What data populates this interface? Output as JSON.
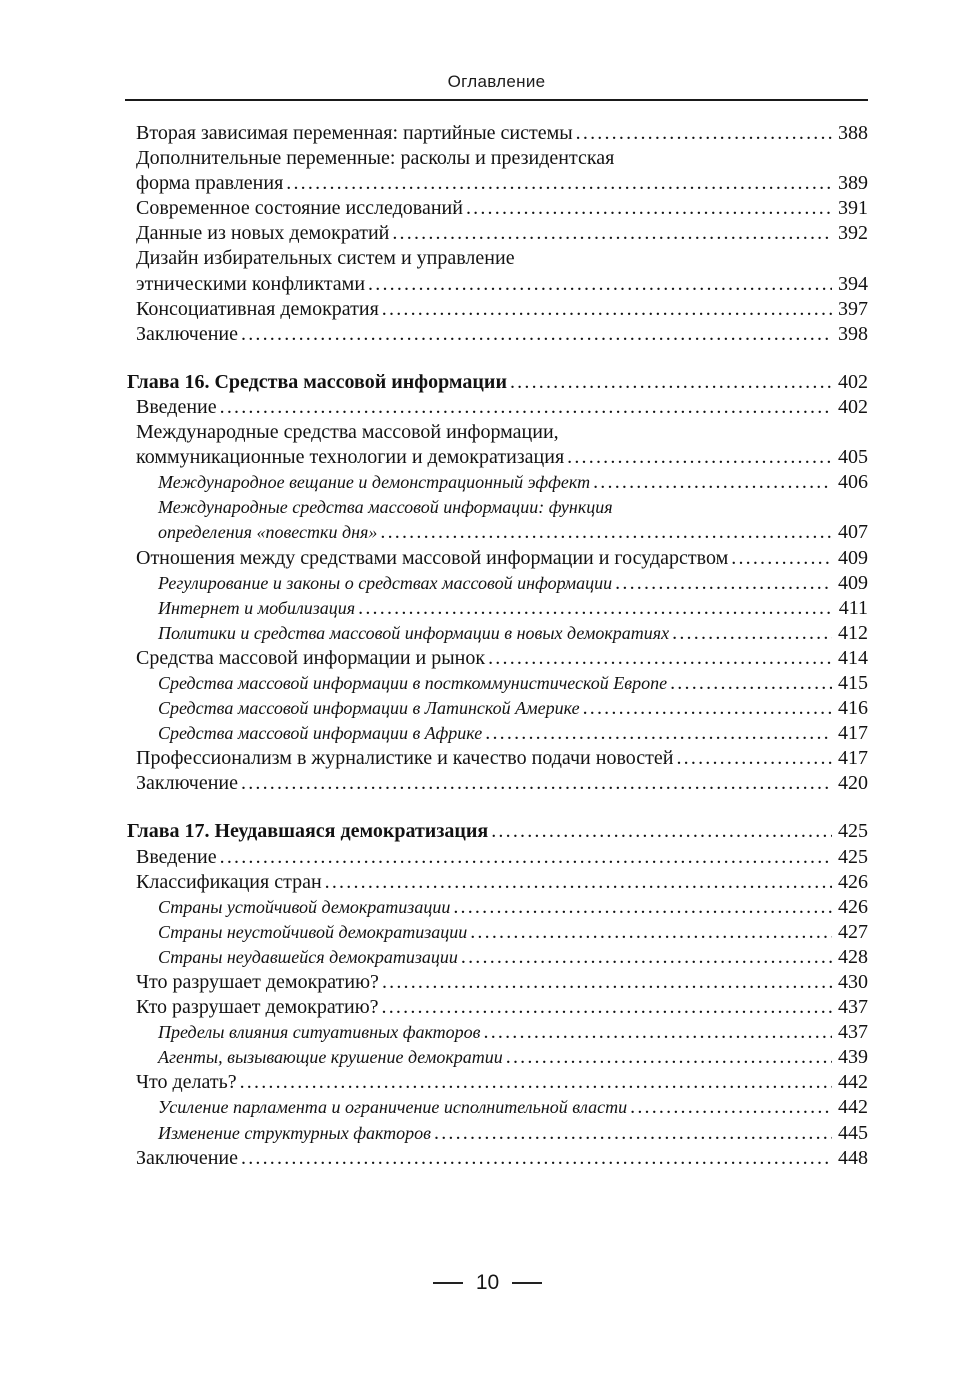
{
  "header": {
    "title": "Оглавление"
  },
  "colors": {
    "text": "#121212",
    "rule": "#1a1a1a",
    "background": "#ffffff"
  },
  "toc": {
    "lines": [
      {
        "text": "Вторая зависимая переменная: партийные системы",
        "page": "388",
        "level": 1
      },
      {
        "text": "Дополнительные переменные: расколы и президентская",
        "page": "",
        "level": 1
      },
      {
        "text": "форма правления",
        "page": "389",
        "level": 1
      },
      {
        "text": "Современное состояние исследований",
        "page": "391",
        "level": 1
      },
      {
        "text": "Данные из новых демократий",
        "page": "392",
        "level": 1
      },
      {
        "text": "Дизайн избирательных систем и управление",
        "page": "",
        "level": 1
      },
      {
        "text": "этническими конфликтами",
        "page": "394",
        "level": 1
      },
      {
        "text": "Консоциативная демократия",
        "page": "397",
        "level": 1
      },
      {
        "text": "Заключение",
        "page": "398",
        "level": 1
      },
      {
        "text": "Глава 16. Средства массовой информации",
        "page": "402",
        "level": 0,
        "bold": true,
        "section_start": true
      },
      {
        "text": "Введение",
        "page": "402",
        "level": 1
      },
      {
        "text": "Международные средства массовой информации,",
        "page": "",
        "level": 1
      },
      {
        "text": "коммуникационные технологии и демократизация",
        "page": "405",
        "level": 1
      },
      {
        "text": "Международное вещание и демонстрационный эффект",
        "page": "406",
        "level": 2,
        "italic": true
      },
      {
        "text": "Международные средства массовой информации: функция",
        "page": "",
        "level": 2,
        "italic": true
      },
      {
        "text": "определения «повестки дня»",
        "page": "407",
        "level": 2,
        "italic": true
      },
      {
        "text": "Отношения между средствами массовой информации и государством",
        "page": "409",
        "level": 1
      },
      {
        "text": "Регулирование и законы о средствах массовой информации",
        "page": "409",
        "level": 2,
        "italic": true
      },
      {
        "text": "Интернет и мобилизация",
        "page": "411",
        "level": 2,
        "italic": true
      },
      {
        "text": "Политики и средства массовой информации в новых демократиях",
        "page": "412",
        "level": 2,
        "italic": true
      },
      {
        "text": "Средства массовой информации и рынок",
        "page": "414",
        "level": 1
      },
      {
        "text": "Средства массовой информации в посткоммунистической Европе",
        "page": "415",
        "level": 2,
        "italic": true
      },
      {
        "text": "Средства массовой информации в Латинской Америке",
        "page": "416",
        "level": 2,
        "italic": true
      },
      {
        "text": "Средства массовой информации в Африке",
        "page": "417",
        "level": 2,
        "italic": true
      },
      {
        "text": "Профессионализм в журналистике и качество подачи новостей",
        "page": "417",
        "level": 1
      },
      {
        "text": "Заключение",
        "page": "420",
        "level": 1
      },
      {
        "text": "Глава 17. Неудавшаяся демократизация",
        "page": "425",
        "level": 0,
        "bold": true,
        "section_start": true
      },
      {
        "text": "Введение",
        "page": "425",
        "level": 1
      },
      {
        "text": "Классификация стран",
        "page": "426",
        "level": 1
      },
      {
        "text": "Страны устойчивой демократизации",
        "page": "426",
        "level": 2,
        "italic": true
      },
      {
        "text": "Страны неустойчивой демократизации",
        "page": "427",
        "level": 2,
        "italic": true
      },
      {
        "text": "Страны неудавшейся демократизации",
        "page": "428",
        "level": 2,
        "italic": true
      },
      {
        "text": "Что разрушает демократию?",
        "page": "430",
        "level": 1
      },
      {
        "text": "Кто разрушает демократию?",
        "page": "437",
        "level": 1
      },
      {
        "text": "Пределы влияния ситуативных факторов",
        "page": "437",
        "level": 2,
        "italic": true
      },
      {
        "text": "Агенты, вызывающие крушение демократии",
        "page": "439",
        "level": 2,
        "italic": true
      },
      {
        "text": "Что делать?",
        "page": "442",
        "level": 1
      },
      {
        "text": "Усиление парламента и ограничение исполнительной власти",
        "page": "442",
        "level": 2,
        "italic": true
      },
      {
        "text": "Изменение структурных факторов",
        "page": "445",
        "level": 2,
        "italic": true
      },
      {
        "text": "Заключение",
        "page": "448",
        "level": 1
      }
    ]
  },
  "footer": {
    "page_number": "10"
  }
}
